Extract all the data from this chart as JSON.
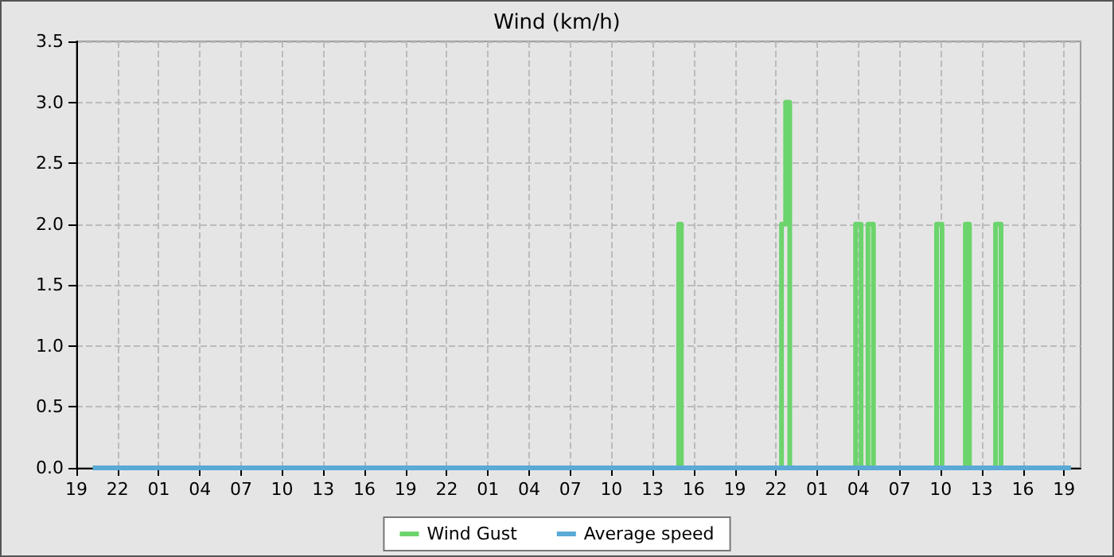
{
  "chart_data": {
    "type": "step",
    "title": "Wind (km/h)",
    "series": [
      {
        "name": "Wind Gust",
        "color": "#6cd46c",
        "x": [
          "--01-01T20:12",
          "--01-03T14:54",
          "--01-03T15:06",
          "--01-03T22:24",
          "--01-03T22:42",
          "--01-03T23:00",
          "--01-04T03:48",
          "--01-04T04:12",
          "--01-04T04:42",
          "--01-04T05:06",
          "--01-04T09:42",
          "--01-04T10:06",
          "--01-04T11:48",
          "--01-04T12:06",
          "--01-04T14:00",
          "--01-04T14:24",
          "--01-04T19:30"
        ],
        "values": [
          0,
          2,
          0,
          2,
          3,
          0,
          2,
          0,
          2,
          0,
          2,
          0,
          2,
          0,
          2,
          0,
          0
        ]
      },
      {
        "name": "Average speed",
        "color": "#5aa9d6",
        "x": [
          "--01-01T20:12",
          "--01-04T19:30"
        ],
        "values": [
          0,
          0
        ]
      }
    ],
    "xlim": [
      "--01-01T19:00",
      "--01-04T20:12"
    ],
    "xticks": [
      {
        "value": "--01-01T19:00",
        "label": "19"
      },
      {
        "value": "--01-01T22:00",
        "label": "22"
      },
      {
        "value": "--01-02T01:00",
        "label": "01"
      },
      {
        "value": "--01-02T04:00",
        "label": "04"
      },
      {
        "value": "--01-02T07:00",
        "label": "07"
      },
      {
        "value": "--01-02T10:00",
        "label": "10"
      },
      {
        "value": "--01-02T13:00",
        "label": "13"
      },
      {
        "value": "--01-02T16:00",
        "label": "16"
      },
      {
        "value": "--01-02T19:00",
        "label": "19"
      },
      {
        "value": "--01-02T22:00",
        "label": "22"
      },
      {
        "value": "--01-03T01:00",
        "label": "01"
      },
      {
        "value": "--01-03T04:00",
        "label": "04"
      },
      {
        "value": "--01-03T07:00",
        "label": "07"
      },
      {
        "value": "--01-03T10:00",
        "label": "10"
      },
      {
        "value": "--01-03T13:00",
        "label": "13"
      },
      {
        "value": "--01-03T16:00",
        "label": "16"
      },
      {
        "value": "--01-03T19:00",
        "label": "19"
      },
      {
        "value": "--01-03T22:00",
        "label": "22"
      },
      {
        "value": "--01-04T01:00",
        "label": "01"
      },
      {
        "value": "--01-04T04:00",
        "label": "04"
      },
      {
        "value": "--01-04T07:00",
        "label": "07"
      },
      {
        "value": "--01-04T10:00",
        "label": "10"
      },
      {
        "value": "--01-04T13:00",
        "label": "13"
      },
      {
        "value": "--01-04T16:00",
        "label": "16"
      },
      {
        "value": "--01-04T19:00",
        "label": "19"
      }
    ],
    "ylim": [
      0,
      3.5
    ],
    "yticks": [
      {
        "value": 0,
        "label": "0.0"
      },
      {
        "value": 0.5,
        "label": "0.5"
      },
      {
        "value": 1,
        "label": "1.0"
      },
      {
        "value": 1.5,
        "label": "1.5"
      },
      {
        "value": 2,
        "label": "2.0"
      },
      {
        "value": 2.5,
        "label": "2.5"
      },
      {
        "value": 3,
        "label": "3.0"
      },
      {
        "value": 3.5,
        "label": "3.5"
      }
    ],
    "grid": true,
    "legend": "bottom",
    "marker": "none",
    "line_style": "solid"
  }
}
